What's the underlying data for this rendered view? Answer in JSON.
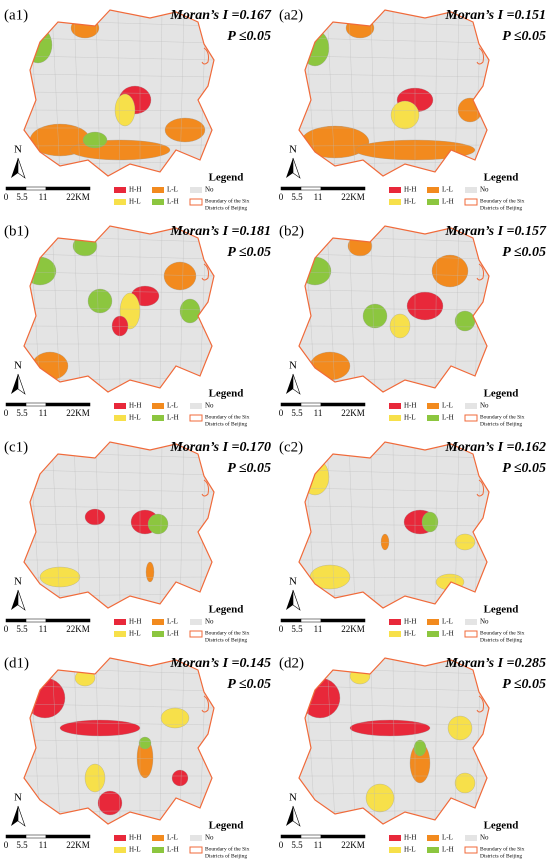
{
  "panels": [
    {
      "label": "(a1)",
      "moran": "Moran’s I =0.167",
      "p": "P ≤0.05"
    },
    {
      "label": "(a2)",
      "moran": "Moran’s I =0.151",
      "p": "P ≤0.05"
    },
    {
      "label": "(b1)",
      "moran": "Moran’s I =0.181",
      "p": "P ≤0.05"
    },
    {
      "label": "(b2)",
      "moran": "Moran’s I =0.157",
      "p": "P ≤0.05"
    },
    {
      "label": "(c1)",
      "moran": "Moran’s I =0.170",
      "p": "P ≤0.05"
    },
    {
      "label": "(c2)",
      "moran": "Moran’s I =0.162",
      "p": "P ≤0.05"
    },
    {
      "label": "(d1)",
      "moran": "Moran’s I =0.145",
      "p": "P ≤0.05"
    },
    {
      "label": "(d2)",
      "moran": "Moran’s I =0.285",
      "p": "P ≤0.05"
    }
  ],
  "north": "N",
  "scale": [
    "0",
    "5.5",
    "11",
    "22KM"
  ],
  "legend": {
    "title": "Legend",
    "items": [
      "H-H",
      "L-L",
      "No",
      "H-L",
      "L-H"
    ],
    "boundary": [
      "Boundary of the Six",
      "Districts of Beijing"
    ]
  }
}
